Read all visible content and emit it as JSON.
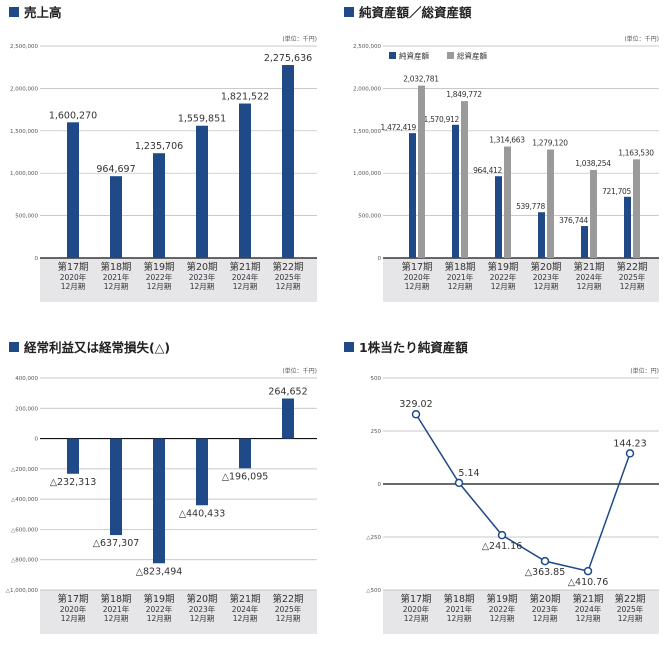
{
  "colors": {
    "navy": "#1f4a87",
    "gray": "#9a9a9a",
    "band": "#e6e6e8",
    "grid": "#b8b8b8"
  },
  "categories": [
    {
      "period": "第17期",
      "year": "2020年",
      "month": "12月期"
    },
    {
      "period": "第18期",
      "year": "2021年",
      "month": "12月期"
    },
    {
      "period": "第19期",
      "year": "2022年",
      "month": "12月期"
    },
    {
      "period": "第20期",
      "year": "2023年",
      "month": "12月期"
    },
    {
      "period": "第21期",
      "year": "2024年",
      "month": "12月期"
    },
    {
      "period": "第22期",
      "year": "2025年",
      "month": "12月期"
    }
  ],
  "chart_data": [
    {
      "type": "bar",
      "title": "売上高",
      "unit": "(単位：千円)",
      "ylim": [
        0,
        2500000
      ],
      "ticks": [
        {
          "v": 0,
          "label": "0"
        },
        {
          "v": 500000,
          "label": "500,000"
        },
        {
          "v": 1000000,
          "label": "1,000,000"
        },
        {
          "v": 1500000,
          "label": "1,500,000"
        },
        {
          "v": 2000000,
          "label": "2,000,000"
        },
        {
          "v": 2500000,
          "label": "2,500,000"
        }
      ],
      "series": [
        {
          "name": "売上高",
          "values": [
            1600270,
            964697,
            1235706,
            1559851,
            1821522,
            2275636
          ],
          "labels": [
            "1,600,270",
            "964,697",
            "1,235,706",
            "1,559,851",
            "1,821,522",
            "2,275,636"
          ]
        }
      ]
    },
    {
      "type": "bar",
      "title": "純資産額／総資産額",
      "unit": "(単位：千円)",
      "ylim": [
        0,
        2500000
      ],
      "ticks": [
        {
          "v": 0,
          "label": "0"
        },
        {
          "v": 500000,
          "label": "500,000"
        },
        {
          "v": 1000000,
          "label": "1,000,000"
        },
        {
          "v": 1500000,
          "label": "1,500,000"
        },
        {
          "v": 2000000,
          "label": "2,000,000"
        },
        {
          "v": 2500000,
          "label": "2,500,000"
        }
      ],
      "legend": [
        "純資産額",
        "総資産額"
      ],
      "series": [
        {
          "name": "純資産額",
          "values": [
            1472419,
            1570912,
            964412,
            539778,
            376744,
            721705
          ],
          "labels": [
            "1,472,419",
            "1,570,912",
            "964,412",
            "539,778",
            "376,744",
            "721,705"
          ]
        },
        {
          "name": "総資産額",
          "values": [
            2032781,
            1849772,
            1314663,
            1279120,
            1038254,
            1163530
          ],
          "labels": [
            "2,032,781",
            "1,849,772",
            "1,314,663",
            "1,279,120",
            "1,038,254",
            "1,163,530"
          ]
        }
      ]
    },
    {
      "type": "bar",
      "title": "経常利益又は経常損失(△)",
      "unit": "(単位：千円)",
      "ylim": [
        -1000000,
        400000
      ],
      "ticks": [
        {
          "v": 400000,
          "label": "400,000"
        },
        {
          "v": 200000,
          "label": "200,000"
        },
        {
          "v": 0,
          "label": "0"
        },
        {
          "v": -200000,
          "label": "△200,000"
        },
        {
          "v": -400000,
          "label": "△400,000"
        },
        {
          "v": -600000,
          "label": "△600,000"
        },
        {
          "v": -800000,
          "label": "△800,000"
        },
        {
          "v": -1000000,
          "label": "△1,000,000"
        }
      ],
      "series": [
        {
          "name": "経常利益",
          "values": [
            -232313,
            -637307,
            -823494,
            -440433,
            -196095,
            264652
          ],
          "labels": [
            "△232,313",
            "△637,307",
            "△823,494",
            "△440,433",
            "△196,095",
            "264,652"
          ]
        }
      ]
    },
    {
      "type": "line",
      "title": "1株当たり純資産額",
      "unit": "(単位：円)",
      "ylim": [
        -500,
        500
      ],
      "ticks": [
        {
          "v": 500,
          "label": "500"
        },
        {
          "v": 250,
          "label": "250"
        },
        {
          "v": 0,
          "label": "0"
        },
        {
          "v": -250,
          "label": "△250"
        },
        {
          "v": -500,
          "label": "△500"
        }
      ],
      "series": [
        {
          "name": "1株当たり純資産額",
          "values": [
            329.02,
            5.14,
            -241.16,
            -363.85,
            -410.76,
            144.23
          ],
          "labels": [
            "329.02",
            "5.14",
            "△241.16",
            "△363.85",
            "△410.76",
            "144.23"
          ]
        }
      ]
    }
  ]
}
